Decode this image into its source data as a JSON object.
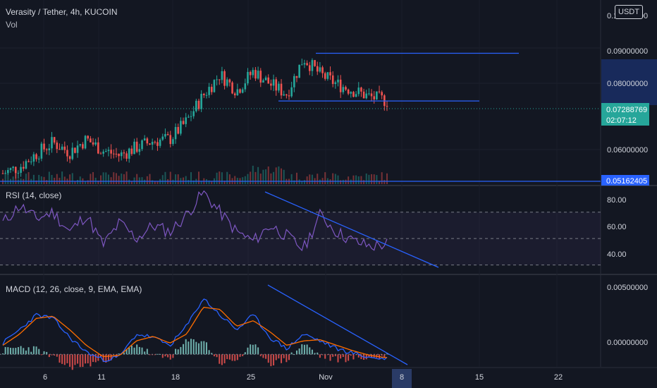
{
  "header": {
    "symbol_line": "Verasity / Tether, 4h, KUCOIN",
    "vol_label": "Vol",
    "currency_button": "USDT"
  },
  "colors": {
    "background": "#131722",
    "up": "#26a69a",
    "down": "#ef5350",
    "trendline": "#2962ff",
    "rsi_line": "#7e57c2",
    "macd_line": "#2962ff",
    "signal_line": "#ff6d00",
    "price_tag": "#26a69a",
    "axis_text": "#d1d4dc"
  },
  "price_axis": {
    "ticks": [
      "0.10000000",
      "0.09000000",
      "0.08000000",
      "0.06000000"
    ],
    "current_price": "0.07288769",
    "countdown": "02:07:12",
    "level_tag": "0.05162405"
  },
  "rsi": {
    "title": "RSI (14, close)",
    "ticks": [
      "80.00",
      "60.00",
      "40.00"
    ]
  },
  "macd": {
    "title": "MACD (12, 26, close, 9, EMA, EMA)",
    "ticks": [
      "0.00500000",
      "0.00000000"
    ]
  },
  "time_axis": {
    "labels": [
      "6",
      "11",
      "18",
      "25",
      "Nov",
      "8",
      "15",
      "22"
    ],
    "highlight": "8"
  },
  "chart_data": [
    {
      "type": "candlestick",
      "title": "Verasity / Tether, 4h, KUCOIN",
      "ylabel": "USDT",
      "x_ticks": [
        "6",
        "11",
        "18",
        "25",
        "Nov",
        "8",
        "15",
        "22"
      ],
      "ylim": [
        0.05,
        0.1
      ],
      "current_price": 0.07288769,
      "points": [
        {
          "x": "Oct 4",
          "close": 0.0505
        },
        {
          "x": "Oct 6",
          "close": 0.0525
        },
        {
          "x": "Oct 8",
          "close": 0.0565
        },
        {
          "x": "Oct 10",
          "close": 0.06
        },
        {
          "x": "Oct 12",
          "close": 0.057
        },
        {
          "x": "Oct 14",
          "close": 0.061
        },
        {
          "x": "Oct 16",
          "close": 0.0575
        },
        {
          "x": "Oct 18",
          "close": 0.056
        },
        {
          "x": "Oct 20",
          "close": 0.0585
        },
        {
          "x": "Oct 22",
          "close": 0.0605
        },
        {
          "x": "Oct 24",
          "close": 0.061
        },
        {
          "x": "Oct 25",
          "close": 0.0665
        },
        {
          "x": "Oct 26",
          "close": 0.0745
        },
        {
          "x": "Oct 27",
          "close": 0.081
        },
        {
          "x": "Oct 28",
          "close": 0.076
        },
        {
          "x": "Oct 29",
          "close": 0.082
        },
        {
          "x": "Oct 30",
          "close": 0.078
        },
        {
          "x": "Oct 31",
          "close": 0.075
        },
        {
          "x": "Nov 1",
          "close": 0.086
        },
        {
          "x": "Nov 2",
          "close": 0.081
        },
        {
          "x": "Nov 3",
          "close": 0.078
        },
        {
          "x": "Nov 4",
          "close": 0.076
        },
        {
          "x": "Nov 5",
          "close": 0.074
        },
        {
          "x": "Nov 6",
          "close": 0.0729
        }
      ],
      "horizontal_levels": [
        0.0875,
        0.0728,
        0.05162405
      ]
    },
    {
      "type": "line",
      "title": "RSI (14, close)",
      "ylim": [
        25,
        88
      ],
      "bands": [
        70,
        50,
        30
      ],
      "series": [
        {
          "name": "RSI",
          "values": [
            62,
            75,
            65,
            70,
            55,
            68,
            45,
            62,
            50,
            60,
            55,
            68,
            85,
            70,
            55,
            48,
            60,
            52,
            42,
            68,
            55,
            48,
            44,
            46
          ]
        }
      ]
    },
    {
      "type": "line",
      "title": "MACD (12, 26, close, 9, EMA, EMA)",
      "ylim": [
        -0.0008,
        0.0058
      ],
      "series": [
        {
          "name": "MACD",
          "values": [
            0.001,
            0.0022,
            0.0035,
            0.0032,
            0.0015,
            0.0002,
            -0.0005,
            -0.0002,
            0.0018,
            0.0015,
            0.0008,
            0.0025,
            0.005,
            0.0035,
            0.0022,
            0.0035,
            0.0015,
            0.0005,
            0.0018,
            0.0012,
            0.0005,
            0.0001,
            -0.0003,
            -0.0004
          ]
        },
        {
          "name": "Signal",
          "values": [
            0.0008,
            0.0018,
            0.0032,
            0.0034,
            0.0022,
            0.0008,
            -0.0002,
            -0.0001,
            0.0012,
            0.0016,
            0.001,
            0.0018,
            0.0042,
            0.004,
            0.0025,
            0.003,
            0.002,
            0.0008,
            0.0012,
            0.0013,
            0.0008,
            0.0003,
            -0.0001,
            -0.0003
          ]
        }
      ]
    }
  ]
}
